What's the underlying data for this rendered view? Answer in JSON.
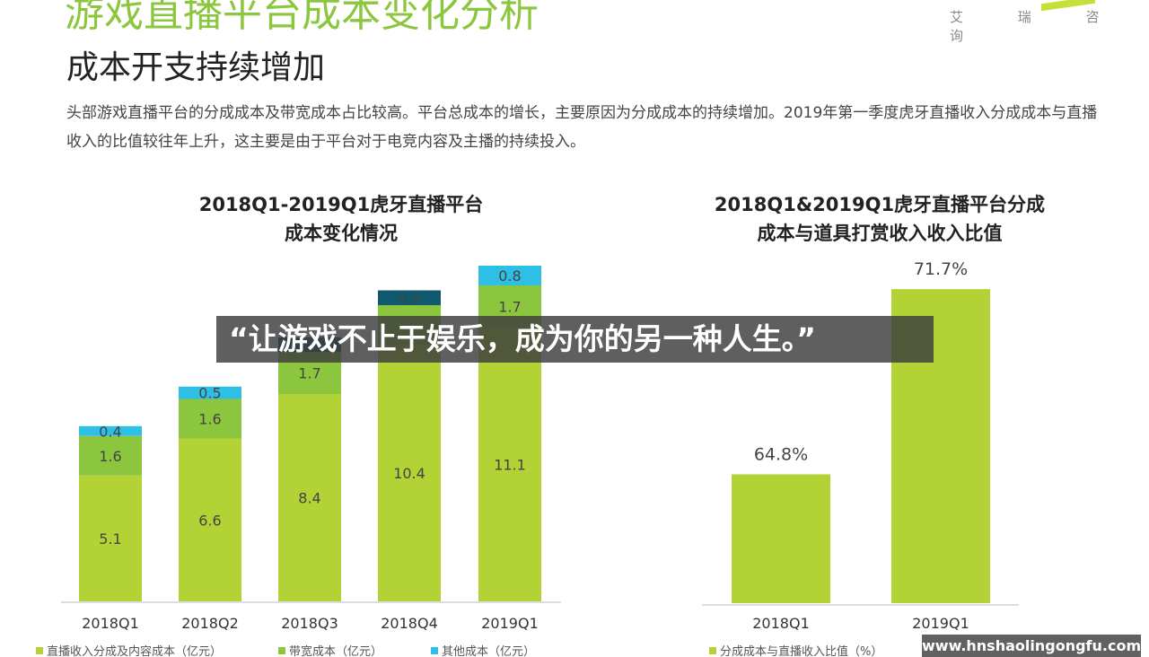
{
  "header": {
    "title": "游戏直播平台成本变化分析",
    "brand": "艾 瑞 咨 询",
    "subtitle": "成本开支持续增加",
    "description": "头部游戏直播平台的分成成本及带宽成本占比较高。平台总成本的增长，主要原因为分成成本的持续增加。2019年第一季度虎牙直播收入分成成本与直播收入的比值较往年上升，这主要是由于平台对于电竞内容及主播的持续投入。"
  },
  "overlay": {
    "quote": "“让游戏不止于娱乐，成为你的另一种人生。”",
    "watermark": "www.hnshaolingongfu.com"
  },
  "colors": {
    "green": "#b2d235",
    "mid_green": "#8cc63f",
    "cyan": "#2ebfe6",
    "dark_teal": "#0e5a6e"
  },
  "chart_data": [
    {
      "type": "bar",
      "stacked": true,
      "title": "2018Q1-2019Q1虎牙直播平台\n成本变化情况",
      "title_lines": [
        "2018Q1-2019Q1虎牙直播平台",
        "成本变化情况"
      ],
      "categories": [
        "2018Q1",
        "2018Q2",
        "2018Q3",
        "2018Q4",
        "2019Q1"
      ],
      "series": [
        {
          "name": "直播收入分成及内容成本（亿元）",
          "color": "#b2d235",
          "values": [
            5.1,
            6.6,
            8.4,
            10.4,
            11.1
          ]
        },
        {
          "name": "带宽成本（亿元）",
          "color": "#8cc63f",
          "values": [
            1.6,
            1.6,
            1.7,
            null,
            1.7
          ]
        },
        {
          "name": "其他成本（亿元）",
          "color": "#2ebfe6",
          "values": [
            0.4,
            0.5,
            null,
            0.6,
            0.8
          ]
        }
      ],
      "ylim": [
        0,
        14
      ],
      "grid": false,
      "legend": "bottom"
    },
    {
      "type": "bar",
      "title_lines": [
        "2018Q1&2019Q1虎牙直播平台分成",
        "成本与道具打赏收入收入比值"
      ],
      "categories": [
        "2018Q1",
        "2019Q1"
      ],
      "values": [
        64.8,
        71.7
      ],
      "labels": [
        "64.8%",
        "71.7%"
      ],
      "color": "#b2d235",
      "series_name": "分成成本与直播收入比值（%）",
      "ylim": [
        60,
        73
      ],
      "grid": false,
      "legend": "bottom"
    }
  ]
}
